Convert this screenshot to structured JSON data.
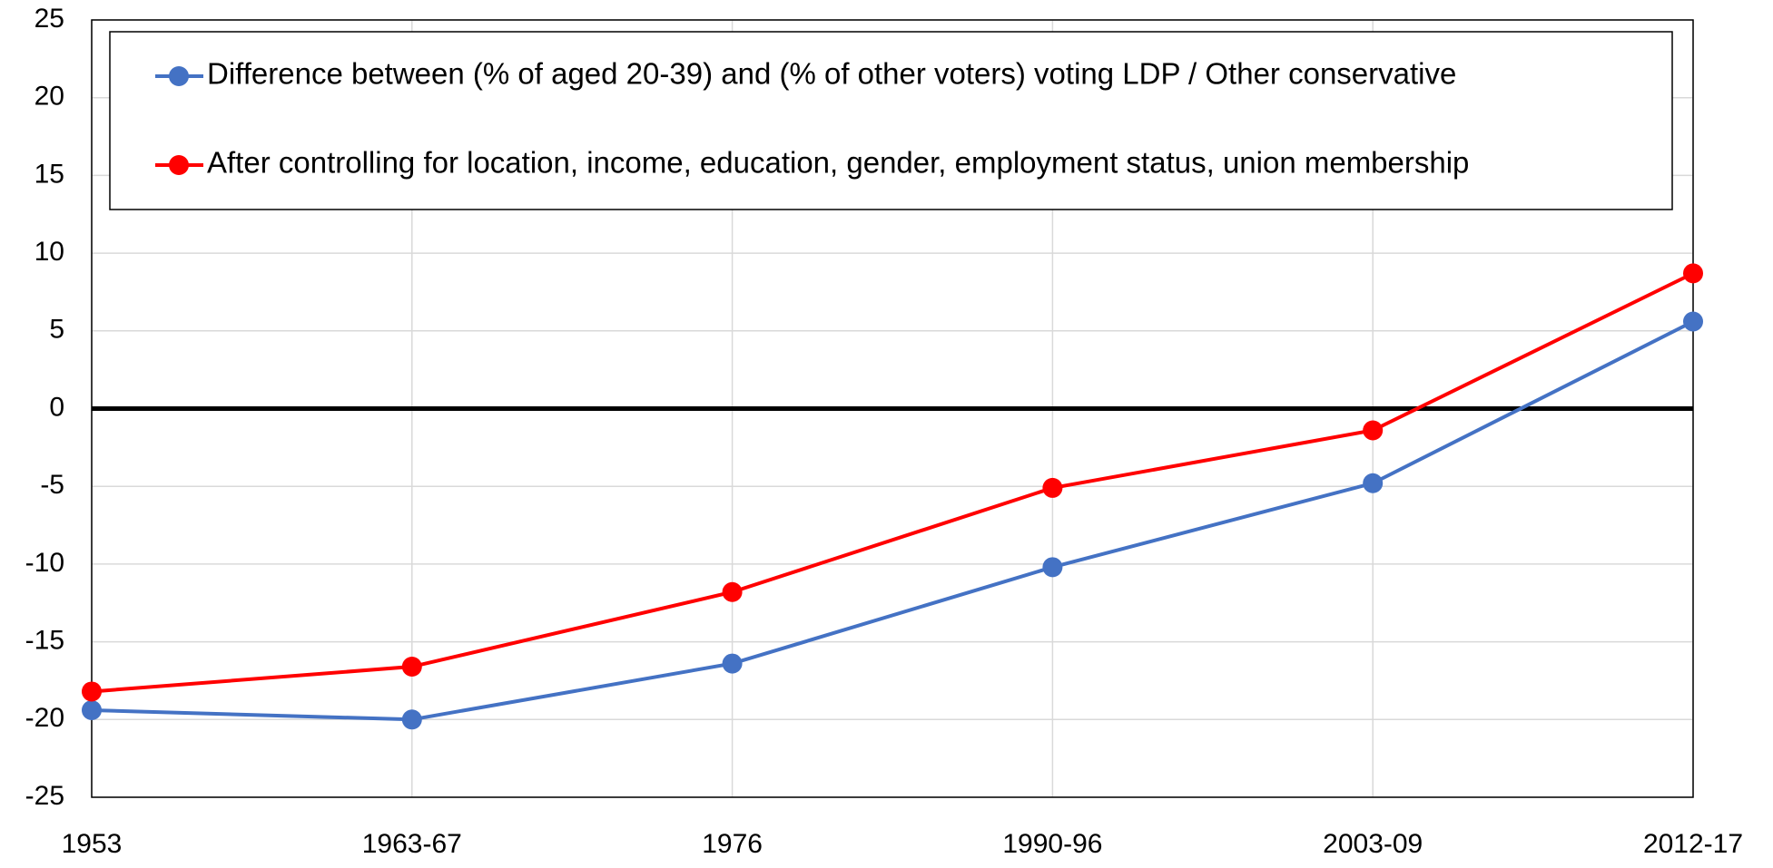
{
  "chart_data": {
    "type": "line",
    "categories": [
      "1953",
      "1963-67",
      "1976",
      "1990-96",
      "2003-09",
      "2012-17"
    ],
    "series": [
      {
        "name": "Difference between (% of aged 20-39) and (% of other voters) voting LDP / Other conservative",
        "color": "#4472c4",
        "values": [
          -19.4,
          -20,
          -16.4,
          -10.2,
          -4.8,
          5.6
        ]
      },
      {
        "name": "After controlling for location, income, education, gender, employment status, union membership",
        "color": "#ff0000",
        "values": [
          -18.2,
          -16.6,
          -11.8,
          -5.1,
          -1.4,
          8.7
        ]
      }
    ],
    "ylim": [
      -25,
      25
    ],
    "yticks": [
      -25,
      -20,
      -15,
      -10,
      -5,
      0,
      5,
      10,
      15,
      20,
      25
    ],
    "grid": true,
    "legend": "top"
  }
}
